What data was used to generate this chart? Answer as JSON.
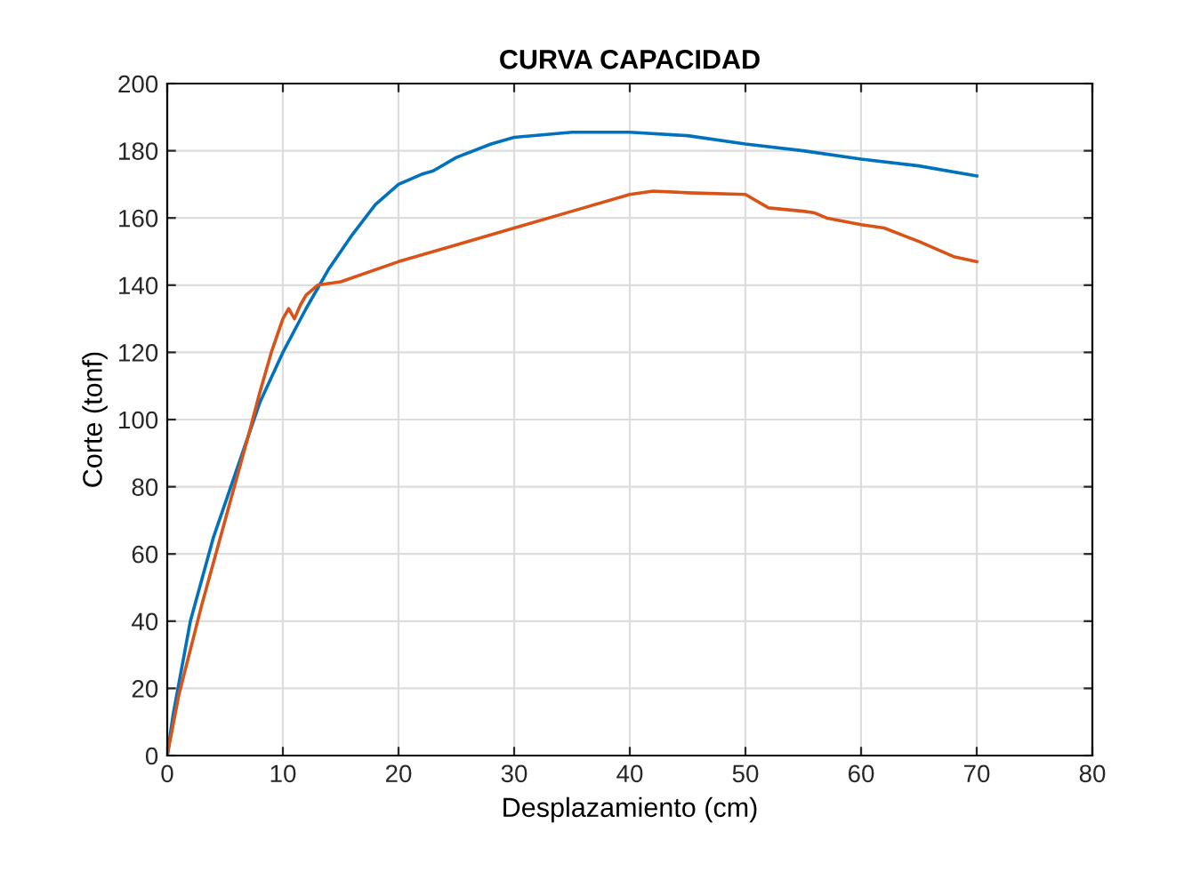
{
  "chart_data": {
    "type": "line",
    "title": "CURVA CAPACIDAD",
    "xlabel": "Desplazamiento (cm)",
    "ylabel": "Corte (tonf)",
    "xlim": [
      0,
      80
    ],
    "xticks": [
      0,
      10,
      20,
      30,
      40,
      50,
      60,
      70,
      80
    ],
    "ylim": [
      0,
      200
    ],
    "yticks": [
      0,
      20,
      40,
      60,
      80,
      100,
      120,
      140,
      160,
      180,
      200
    ],
    "grid": true,
    "legend": false,
    "series": [
      {
        "color": "#0072bd",
        "x": [
          0,
          0.5,
          2,
          4,
          6,
          8,
          10,
          12,
          14,
          16,
          18,
          20,
          22,
          23,
          25,
          28,
          30,
          35,
          40,
          45,
          50,
          55,
          60,
          65,
          70
        ],
        "values": [
          0,
          12,
          40,
          65,
          85,
          105,
          120,
          133,
          145,
          155,
          164,
          170,
          173,
          174,
          178,
          182,
          184,
          185.5,
          185.5,
          184.5,
          182,
          180,
          177.5,
          175.5,
          172.5
        ]
      },
      {
        "color": "#d95319",
        "x": [
          0,
          1,
          3,
          5,
          7,
          8,
          9,
          10,
          10.5,
          11,
          11.5,
          12,
          13,
          15,
          20,
          25,
          30,
          35,
          40,
          42,
          45,
          50,
          52,
          55,
          56,
          57,
          60,
          62,
          65,
          68,
          70
        ],
        "values": [
          0,
          18,
          45,
          70,
          95,
          108,
          120,
          130,
          133,
          130,
          134,
          137,
          140,
          141,
          147,
          152,
          157,
          162,
          167,
          168,
          167.5,
          167,
          163,
          162,
          161.5,
          160,
          158,
          157,
          153,
          148.5,
          147
        ]
      }
    ]
  }
}
